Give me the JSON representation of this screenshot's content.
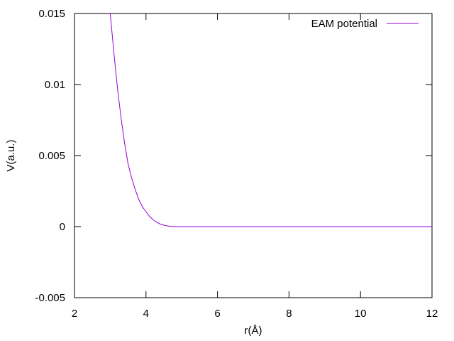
{
  "chart_data": {
    "type": "line",
    "title": "",
    "xlabel": "r(Å)",
    "ylabel": "V(a.u.)",
    "xlim": [
      2,
      12
    ],
    "ylim": [
      -0.005,
      0.015
    ],
    "xticks": [
      2,
      4,
      6,
      8,
      10,
      12
    ],
    "yticks": [
      -0.005,
      0,
      0.005,
      0.01,
      0.015
    ],
    "xtick_labels": [
      "2",
      "4",
      "6",
      "8",
      "10",
      "12"
    ],
    "ytick_labels": [
      "-0.005",
      "0",
      "0.005",
      "0.01",
      "0.015"
    ],
    "grid": false,
    "legend_position": "top-right",
    "series": [
      {
        "name": "EAM potential",
        "color": "#9400d3",
        "x": [
          3.0,
          3.1,
          3.2,
          3.3,
          3.4,
          3.5,
          3.6,
          3.7,
          3.8,
          3.9,
          4.0,
          4.1,
          4.2,
          4.3,
          4.4,
          4.5,
          4.6,
          4.7,
          4.8,
          4.9,
          5.0,
          6.0,
          8.0,
          10.0,
          12.0
        ],
        "y": [
          0.015,
          0.0123,
          0.0098,
          0.0077,
          0.0059,
          0.0044,
          0.0034,
          0.0026,
          0.0019,
          0.0014,
          0.00105,
          0.00072,
          0.00048,
          0.0003,
          0.00018,
          0.0001,
          5e-05,
          2e-05,
          1e-05,
          3e-06,
          0.0,
          0.0,
          0.0,
          0.0,
          0.0
        ]
      }
    ]
  }
}
